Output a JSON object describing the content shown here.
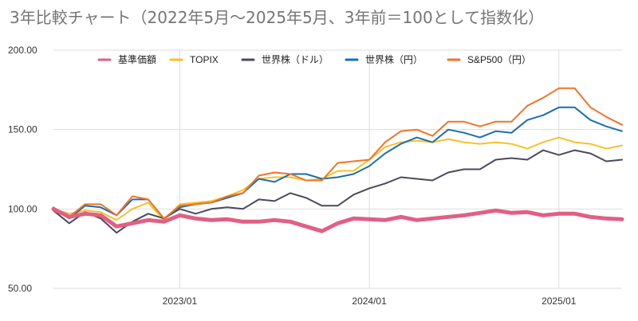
{
  "chart_data": {
    "type": "line",
    "title": "3年比較チャート（2022年5月～2025年5月、3年前＝100として指数化）",
    "ylim": [
      50,
      200
    ],
    "yticks": [
      "50.00",
      "100.00",
      "150.00",
      "200.00"
    ],
    "xticks": [
      {
        "label": "2023/01",
        "x": 8
      },
      {
        "label": "2024/01",
        "x": 20
      },
      {
        "label": "2025/01",
        "x": 32
      }
    ],
    "xrange": [
      0,
      36
    ],
    "grid": true,
    "legend_position": "top",
    "series": [
      {
        "name": "基準価額",
        "color": "#e06083",
        "width": 5,
        "values": [
          100,
          95,
          97,
          96,
          89,
          91,
          93,
          92,
          96,
          94,
          93,
          93.5,
          92,
          92,
          93,
          92,
          89,
          86,
          91,
          94,
          93.5,
          93,
          95,
          93,
          94,
          95,
          96,
          97.5,
          99,
          97.5,
          98,
          96,
          97,
          97,
          95,
          94,
          93.5
        ]
      },
      {
        "name": "TOPIX",
        "color": "#f7c12a",
        "width": 2,
        "values": [
          100,
          97,
          99,
          98,
          93,
          100,
          104,
          93,
          103,
          104,
          105,
          108,
          112,
          119,
          120,
          120,
          118,
          119,
          124,
          124,
          131,
          139,
          142,
          143,
          142,
          144,
          142,
          141,
          142,
          141,
          138,
          142,
          145,
          142,
          141,
          138,
          140
        ]
      },
      {
        "name": "世界株（ドル）",
        "color": "#4b4a5d",
        "width": 2,
        "values": [
          99,
          91,
          98,
          94,
          85,
          92,
          97,
          94,
          100,
          97,
          100,
          101,
          100,
          106,
          105,
          110,
          107,
          102,
          102,
          109,
          113,
          116,
          120,
          119,
          118,
          123,
          125,
          125,
          131,
          132,
          131,
          137,
          134,
          137,
          135,
          130,
          131
        ]
      },
      {
        "name": "世界株（円）",
        "color": "#1d6fa6",
        "width": 2,
        "values": [
          100,
          94,
          102,
          101,
          96,
          106,
          106,
          94,
          101,
          103,
          104,
          107,
          110,
          119,
          117,
          122,
          122,
          119,
          120,
          122,
          127,
          135,
          141,
          145,
          142,
          150,
          148,
          145,
          149,
          148,
          156,
          159,
          164,
          164,
          156,
          152,
          149
        ]
      },
      {
        "name": "S&P500（円）",
        "color": "#f17326",
        "width": 2,
        "values": [
          101,
          95,
          103,
          103,
          96,
          108,
          106,
          94,
          102,
          103,
          104,
          108,
          110,
          121,
          123,
          122,
          118,
          118,
          129,
          130,
          131,
          142,
          149,
          150,
          146,
          155,
          155,
          152,
          155,
          155,
          165,
          170,
          176,
          176,
          164,
          158,
          153
        ]
      }
    ]
  }
}
